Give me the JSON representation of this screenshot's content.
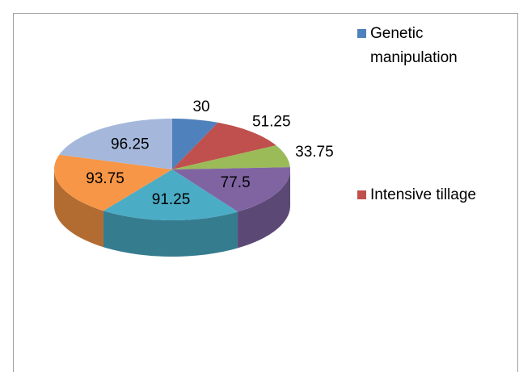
{
  "chart_data": {
    "type": "pie",
    "pie_3d": true,
    "categories": [
      "Genetic manipulation",
      "Intensive tillage",
      null,
      null,
      null,
      null,
      null
    ],
    "values": [
      30,
      51.25,
      33.75,
      77.5,
      91.25,
      93.75,
      96.25
    ],
    "colors": [
      "#4f81bd",
      "#c0504d",
      "#9bbb59",
      "#8064a2",
      "#4bacc6",
      "#f79646",
      "#a5b8dc"
    ],
    "legend": "right"
  }
}
